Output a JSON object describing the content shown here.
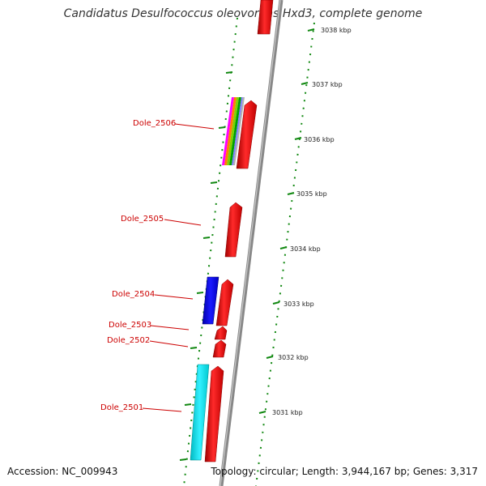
{
  "title": "Candidatus Desulfococcus oleovorans Hxd3, complete genome",
  "footer": {
    "accession": "Accession: NC_009943",
    "summary": "Topology: circular; Length: 3,944,167 bp; Genes: 3,317"
  },
  "colors": {
    "forward_gene": "#ff0000",
    "reverse_gene_blue": "#0000ff",
    "reverse_gene_cyan": "#00e5ee",
    "backbone": "#888888",
    "tick": "#118811",
    "label": "#cc0000",
    "rainbow": [
      "#ff00ff",
      "#ff7f00",
      "#7fd000",
      "#00a000",
      "#8080ff",
      "#b0b0b0"
    ]
  },
  "scale": {
    "labels": [
      "3038 kbp",
      "3037 kbp",
      "3036 kbp",
      "3035 kbp",
      "3034 kbp",
      "3033 kbp",
      "3032 kbp",
      "3031 kbp"
    ]
  },
  "genes": [
    {
      "name": "Dole_2506"
    },
    {
      "name": "Dole_2505"
    },
    {
      "name": "Dole_2504"
    },
    {
      "name": "Dole_2503"
    },
    {
      "name": "Dole_2502"
    },
    {
      "name": "Dole_2501"
    }
  ]
}
